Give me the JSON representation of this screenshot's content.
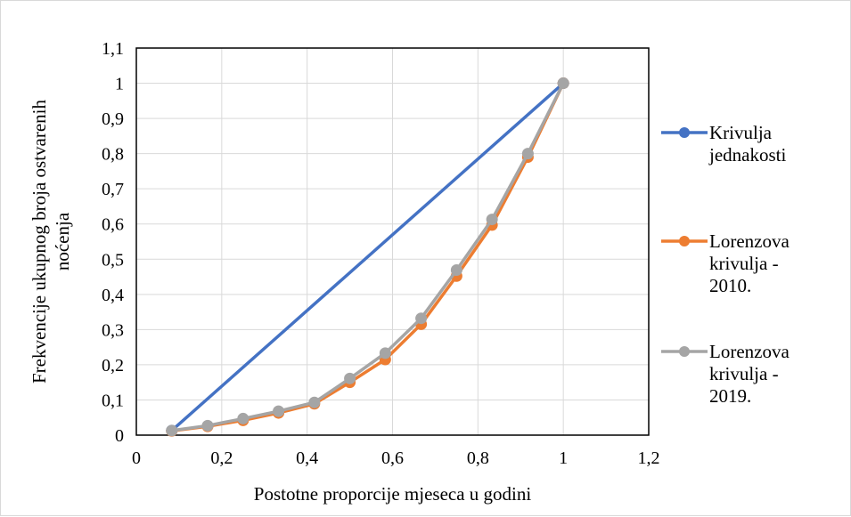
{
  "chart_data": {
    "type": "line",
    "title": "",
    "xlabel": "Postotne proporcije mjeseca u godini",
    "ylabel_lines": [
      "Frekvencije ukupnog broja ostvarenih",
      "noćenja"
    ],
    "xlim": [
      0,
      1.2
    ],
    "ylim": [
      0,
      1.1
    ],
    "x_ticks": [
      0,
      0.2,
      0.4,
      0.6,
      0.8,
      1,
      1.2
    ],
    "x_tick_labels": [
      "0",
      "0,2",
      "0,4",
      "0,6",
      "0,8",
      "1",
      "1,2"
    ],
    "y_ticks": [
      0,
      0.1,
      0.2,
      0.3,
      0.4,
      0.5,
      0.6,
      0.7,
      0.8,
      0.9,
      1,
      1.1
    ],
    "y_tick_labels": [
      "0",
      "0,1",
      "0,2",
      "0,3",
      "0,4",
      "0,5",
      "0,6",
      "0,7",
      "0,8",
      "0,9",
      "1",
      "1,1"
    ],
    "grid": true,
    "legend_position": "right",
    "series": [
      {
        "name_lines": [
          "Krivulja",
          "jednakosti"
        ],
        "color": "#4472C4",
        "markers": "first-last",
        "x": [
          0.083,
          1
        ],
        "y": [
          0.013,
          1
        ]
      },
      {
        "name_lines": [
          "Lorenzova",
          "krivulja -",
          "2010."
        ],
        "color": "#ED7D31",
        "markers": "all",
        "x": [
          0.083,
          0.167,
          0.25,
          0.333,
          0.417,
          0.5,
          0.583,
          0.667,
          0.75,
          0.833,
          0.917,
          1
        ],
        "y": [
          0.012,
          0.025,
          0.042,
          0.063,
          0.089,
          0.15,
          0.215,
          0.315,
          0.452,
          0.597,
          0.79,
          1
        ]
      },
      {
        "name_lines": [
          "Lorenzova",
          "krivulja -",
          "2019."
        ],
        "color": "#A5A5A5",
        "markers": "all",
        "x": [
          0.083,
          0.167,
          0.25,
          0.333,
          0.417,
          0.5,
          0.583,
          0.667,
          0.75,
          0.833,
          0.917,
          1
        ],
        "y": [
          0.013,
          0.027,
          0.047,
          0.068,
          0.093,
          0.161,
          0.233,
          0.332,
          0.469,
          0.613,
          0.8,
          1
        ]
      }
    ]
  }
}
